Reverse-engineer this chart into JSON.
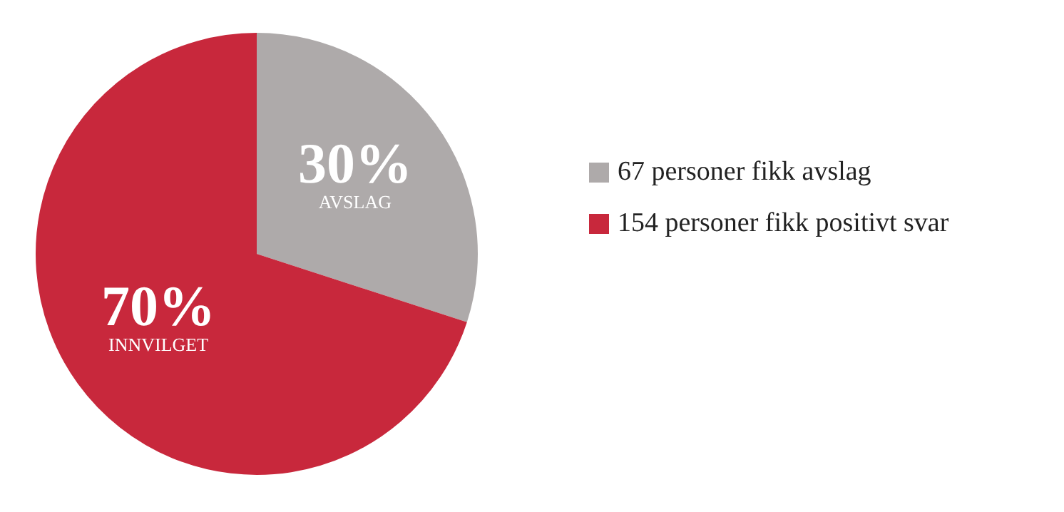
{
  "chart_data": {
    "type": "pie",
    "categories": [
      "67 personer fikk avslag",
      "154 personer fikk positivt svar"
    ],
    "values": [
      30,
      70
    ],
    "value_labels": [
      "30%",
      "70%"
    ],
    "colors": [
      "#aeaaaa",
      "#c8283c"
    ],
    "annotations": [
      "AVSLAG",
      "INNVILGET"
    ],
    "legend": "right"
  }
}
